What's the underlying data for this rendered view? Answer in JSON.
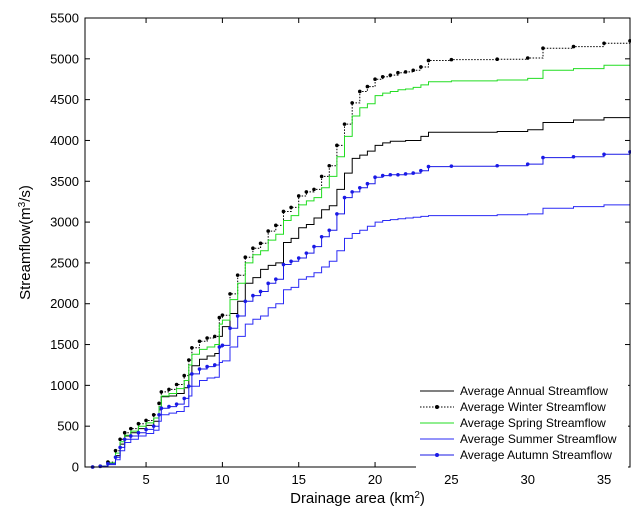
{
  "chart_data": {
    "type": "line",
    "title": "",
    "xlabel": "Drainage area (km",
    "xlabel_sup": "2",
    "xlabel_end": ")",
    "ylabel": "Streamflow(m",
    "ylabel_sup": "3",
    "ylabel_end": "/s)",
    "xlim": [
      1,
      36.7
    ],
    "ylim": [
      0,
      5500
    ],
    "xticks": [
      5,
      10,
      15,
      20,
      25,
      30,
      35
    ],
    "yticks": [
      0,
      500,
      1000,
      1500,
      2000,
      2500,
      3000,
      3500,
      4000,
      4500,
      5000,
      5500
    ],
    "grid": false,
    "legend_position": "bottom-right",
    "series": [
      {
        "name": "Average Annual Streamflow",
        "color": "#000000",
        "style": "solid",
        "marker": "none",
        "x": [
          1.5,
          2.0,
          2.5,
          3.0,
          3.3,
          3.6,
          4.0,
          4.5,
          5.0,
          5.5,
          5.85,
          6.0,
          6.5,
          7.0,
          7.5,
          7.8,
          8.0,
          8.5,
          9.0,
          9.5,
          9.8,
          10.0,
          10.5,
          11.0,
          11.5,
          12.0,
          12.5,
          13.0,
          13.5,
          14.0,
          14.5,
          15.0,
          15.5,
          16.0,
          16.5,
          17.0,
          17.5,
          18.0,
          18.5,
          19.0,
          19.5,
          20.0,
          20.5,
          21.0,
          21.5,
          22.0,
          22.5,
          23.0,
          23.5,
          25.0,
          28.0,
          30.0,
          31.0,
          33.0,
          35.0,
          36.7
        ],
        "y": [
          0,
          10,
          40,
          140,
          280,
          380,
          420,
          470,
          510,
          560,
          700,
          860,
          870,
          900,
          970,
          1130,
          1240,
          1320,
          1360,
          1390,
          1600,
          1720,
          1880,
          2030,
          2250,
          2320,
          2420,
          2470,
          2500,
          2750,
          2800,
          2930,
          2970,
          3050,
          3150,
          3200,
          3400,
          3600,
          3780,
          3820,
          3870,
          3940,
          3970,
          3990,
          3990,
          4000,
          4000,
          4050,
          4100,
          4100,
          4110,
          4130,
          4220,
          4250,
          4280,
          4310
        ]
      },
      {
        "name": "Average Winter Streamflow",
        "color": "#000000",
        "style": "dotted",
        "marker": "dot",
        "x": [
          1.5,
          2.0,
          2.5,
          3.0,
          3.3,
          3.6,
          4.0,
          4.5,
          5.0,
          5.5,
          5.85,
          6.0,
          6.5,
          7.0,
          7.5,
          7.8,
          8.0,
          8.5,
          9.0,
          9.5,
          9.8,
          10.0,
          10.5,
          11.0,
          11.5,
          12.0,
          12.5,
          13.0,
          13.5,
          14.0,
          14.5,
          15.0,
          15.5,
          16.0,
          16.5,
          17.0,
          17.5,
          18.0,
          18.5,
          19.0,
          19.5,
          20.0,
          20.5,
          21.0,
          21.5,
          22.0,
          22.5,
          23.0,
          23.5,
          25.0,
          28.0,
          30.0,
          31.0,
          33.0,
          35.0,
          36.7
        ],
        "y": [
          0,
          10,
          60,
          200,
          340,
          420,
          470,
          530,
          570,
          640,
          780,
          920,
          950,
          1010,
          1120,
          1310,
          1460,
          1540,
          1580,
          1600,
          1830,
          1860,
          2120,
          2350,
          2570,
          2680,
          2740,
          2890,
          2960,
          3130,
          3180,
          3320,
          3370,
          3400,
          3560,
          3690,
          3940,
          4200,
          4460,
          4600,
          4660,
          4750,
          4780,
          4800,
          4830,
          4840,
          4860,
          4900,
          4980,
          4990,
          4995,
          5010,
          5130,
          5150,
          5190,
          5220
        ]
      },
      {
        "name": "Average Spring Streamflow",
        "color": "#22dd22",
        "style": "solid",
        "marker": "none",
        "x": [
          1.5,
          2.0,
          2.5,
          3.0,
          3.3,
          3.6,
          4.0,
          4.5,
          5.0,
          5.5,
          5.85,
          6.0,
          6.5,
          7.0,
          7.5,
          7.8,
          8.0,
          8.5,
          9.0,
          9.5,
          9.8,
          10.0,
          10.5,
          11.0,
          11.5,
          12.0,
          12.5,
          13.0,
          13.5,
          14.0,
          14.5,
          15.0,
          15.5,
          16.0,
          16.5,
          17.0,
          17.5,
          18.0,
          18.5,
          19.0,
          19.5,
          20.0,
          20.5,
          21.0,
          21.5,
          22.0,
          22.5,
          23.0,
          23.5,
          25.0,
          28.0,
          30.0,
          31.0,
          33.0,
          35.0,
          36.7
        ],
        "y": [
          0,
          10,
          50,
          170,
          310,
          390,
          440,
          500,
          540,
          600,
          740,
          870,
          900,
          960,
          1060,
          1250,
          1380,
          1440,
          1470,
          1500,
          1750,
          1800,
          2050,
          2250,
          2500,
          2600,
          2650,
          2780,
          2850,
          3020,
          3080,
          3210,
          3260,
          3300,
          3420,
          3560,
          3800,
          4050,
          4300,
          4400,
          4450,
          4550,
          4580,
          4600,
          4620,
          4630,
          4650,
          4680,
          4720,
          4730,
          4740,
          4760,
          4860,
          4880,
          4920,
          4950
        ]
      },
      {
        "name": "Average Summer Streamflow",
        "color": "#2a2af5",
        "style": "solid",
        "marker": "none",
        "x": [
          1.5,
          2.0,
          2.5,
          3.0,
          3.3,
          3.6,
          4.0,
          4.5,
          5.0,
          5.5,
          5.85,
          6.0,
          6.5,
          7.0,
          7.5,
          7.8,
          8.0,
          8.5,
          9.0,
          9.5,
          9.8,
          10.0,
          10.5,
          11.0,
          11.5,
          12.0,
          12.5,
          13.0,
          13.5,
          14.0,
          14.5,
          15.0,
          15.5,
          16.0,
          16.5,
          17.0,
          17.5,
          18.0,
          18.5,
          19.0,
          19.5,
          20.0,
          20.5,
          21.0,
          21.5,
          22.0,
          22.5,
          23.0,
          23.5,
          25.0,
          28.0,
          30.0,
          31.0,
          33.0,
          35.0,
          36.7
        ],
        "y": [
          0,
          5,
          30,
          90,
          200,
          300,
          340,
          380,
          410,
          450,
          560,
          640,
          660,
          680,
          740,
          870,
          990,
          1060,
          1090,
          1100,
          1280,
          1300,
          1470,
          1600,
          1750,
          1810,
          1850,
          1950,
          2000,
          2170,
          2200,
          2300,
          2330,
          2380,
          2450,
          2520,
          2650,
          2800,
          2860,
          2900,
          2950,
          3000,
          3020,
          3030,
          3040,
          3050,
          3060,
          3070,
          3080,
          3080,
          3090,
          3100,
          3170,
          3190,
          3210,
          3230
        ]
      },
      {
        "name": "Average Autumn Streamflow",
        "color": "#1a1ae6",
        "style": "solid",
        "marker": "dot",
        "x": [
          1.5,
          2.0,
          2.5,
          3.0,
          3.3,
          3.6,
          4.0,
          4.5,
          5.0,
          5.5,
          5.85,
          6.0,
          6.5,
          7.0,
          7.5,
          7.8,
          8.0,
          8.5,
          9.0,
          9.5,
          9.8,
          10.0,
          10.5,
          11.0,
          11.5,
          12.0,
          12.5,
          13.0,
          13.5,
          14.0,
          14.5,
          15.0,
          15.5,
          16.0,
          16.5,
          17.0,
          17.5,
          18.0,
          18.5,
          19.0,
          19.5,
          20.0,
          20.5,
          21.0,
          21.5,
          22.0,
          22.5,
          23.0,
          23.5,
          25.0,
          28.0,
          30.0,
          31.0,
          33.0,
          35.0,
          36.7
        ],
        "y": [
          0,
          8,
          40,
          120,
          240,
          340,
          380,
          420,
          460,
          500,
          640,
          720,
          740,
          770,
          840,
          990,
          1140,
          1200,
          1230,
          1250,
          1470,
          1490,
          1700,
          1850,
          2030,
          2100,
          2150,
          2250,
          2300,
          2480,
          2520,
          2560,
          2620,
          2700,
          2820,
          2900,
          3100,
          3300,
          3370,
          3420,
          3470,
          3550,
          3570,
          3580,
          3580,
          3590,
          3600,
          3630,
          3680,
          3685,
          3690,
          3710,
          3790,
          3800,
          3830,
          3860
        ]
      }
    ]
  }
}
